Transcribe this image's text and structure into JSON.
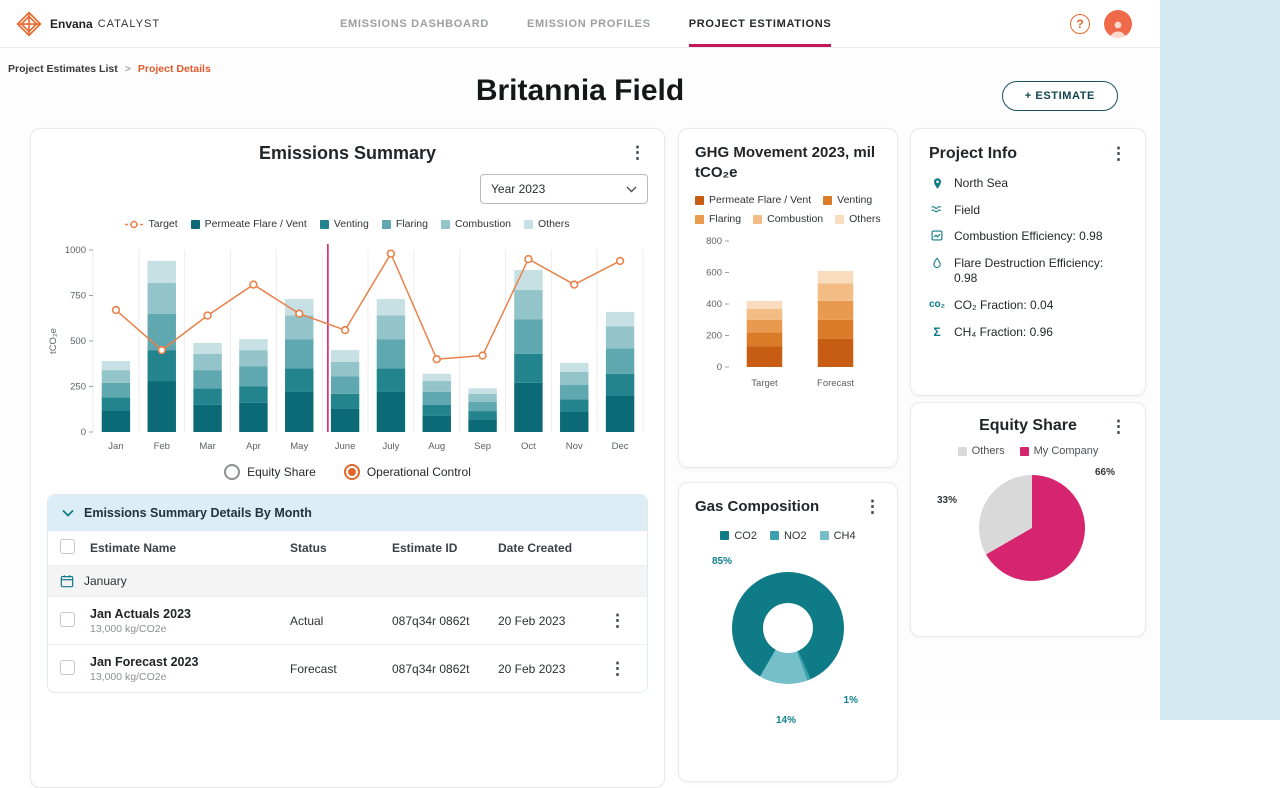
{
  "brand": {
    "name": "Envana",
    "suffix": "CATALYST"
  },
  "nav": {
    "items": [
      {
        "label": "EMISSIONS DASHBOARD",
        "active": false
      },
      {
        "label": "EMISSION PROFILES",
        "active": false
      },
      {
        "label": "PROJECT ESTIMATIONS",
        "active": true
      }
    ]
  },
  "header_icons": {
    "help_label": "?"
  },
  "breadcrumb": {
    "items": [
      "Project Estimates List",
      "Project Details"
    ],
    "separator": ">"
  },
  "page": {
    "title": "Britannia Field",
    "estimate_button_label": "+ ESTIMATE"
  },
  "emissions_summary": {
    "year_filter": "Year 2023",
    "radios": [
      {
        "label": "Equity Share",
        "selected": false
      },
      {
        "label": "Operational Control",
        "selected": true
      }
    ]
  },
  "details_table": {
    "header": "Emissions Summary Details By Month",
    "columns": [
      "Estimate Name",
      "Status",
      "Estimate ID",
      "Date Created"
    ],
    "groups": [
      {
        "label": "January",
        "rows": [
          {
            "name": "Jan Actuals 2023",
            "sub": "13,000 kg/CO2e",
            "status": "Actual",
            "estimate_id": "087q34r 0862t",
            "date": "20 Feb 2023"
          },
          {
            "name": "Jan Forecast 2023",
            "sub": "13,000 kg/CO2e",
            "status": "Forecast",
            "estimate_id": "087q34r 0862t",
            "date": "20 Feb 2023"
          }
        ]
      }
    ]
  },
  "project_info": {
    "title": "Project Info",
    "items": [
      {
        "icon": "location-pin",
        "text": "North Sea"
      },
      {
        "icon": "field",
        "text": "Field"
      },
      {
        "icon": "combustion-efficiency",
        "text": "Combustion Efficiency: 0.98"
      },
      {
        "icon": "flare-destruction",
        "text": "Flare Destruction Efficiency: 0.98"
      },
      {
        "icon": "co2-fraction",
        "text": "CO₂ Fraction: 0.04"
      },
      {
        "icon": "ch4-fraction",
        "text": "CH₄ Fraction: 0.96"
      }
    ]
  },
  "chart_data": [
    {
      "id": "emissions-summary",
      "type": "bar",
      "stacked": true,
      "title": "Emissions Summary",
      "ylabel": "tCO₂e",
      "ylim": [
        0,
        1000
      ],
      "yticks": [
        0,
        250,
        500,
        750,
        1000
      ],
      "grid": true,
      "legend_position": "top",
      "categories": [
        "Jan",
        "Feb",
        "Mar",
        "Apr",
        "May",
        "June",
        "July",
        "Aug",
        "Sep",
        "Oct",
        "Nov",
        "Dec"
      ],
      "series": [
        {
          "name": "Permeate Flare / Vent",
          "color": "#0c6a76",
          "values": [
            120,
            280,
            150,
            160,
            220,
            130,
            220,
            90,
            70,
            270,
            110,
            200
          ]
        },
        {
          "name": "Venting",
          "color": "#23848e",
          "values": [
            70,
            170,
            90,
            90,
            130,
            80,
            130,
            60,
            45,
            160,
            70,
            120
          ]
        },
        {
          "name": "Flaring",
          "color": "#5fa8b0",
          "values": [
            80,
            200,
            100,
            110,
            160,
            95,
            160,
            70,
            50,
            190,
            80,
            140
          ]
        },
        {
          "name": "Combustion",
          "color": "#93c4ca",
          "values": [
            70,
            170,
            90,
            90,
            130,
            80,
            130,
            60,
            45,
            160,
            70,
            120
          ]
        },
        {
          "name": "Others",
          "color": "#c7e0e4",
          "values": [
            50,
            120,
            60,
            60,
            90,
            65,
            90,
            40,
            30,
            110,
            50,
            80
          ]
        }
      ],
      "line_series": {
        "name": "Target",
        "color": "#e8824a",
        "values": [
          670,
          450,
          640,
          810,
          650,
          560,
          980,
          400,
          420,
          950,
          810,
          940
        ]
      },
      "marker_line": {
        "category": "June",
        "color": "#d6246e"
      }
    },
    {
      "id": "ghg-movement",
      "type": "bar",
      "stacked": true,
      "title": "GHG Movement 2023, mil tCO₂e",
      "ylim": [
        0,
        800
      ],
      "yticks": [
        0,
        200,
        400,
        600,
        800
      ],
      "categories": [
        "Target",
        "Forecast"
      ],
      "series": [
        {
          "name": "Permeate Flare / Vent",
          "color": "#c65d12",
          "values": [
            130,
            180
          ]
        },
        {
          "name": "Venting",
          "color": "#d97b27",
          "values": [
            90,
            120
          ]
        },
        {
          "name": "Flaring",
          "color": "#e89a4e",
          "values": [
            80,
            120
          ]
        },
        {
          "name": "Combustion",
          "color": "#f3bc85",
          "values": [
            70,
            110
          ]
        },
        {
          "name": "Others",
          "color": "#f9dcbd",
          "values": [
            50,
            80
          ]
        }
      ]
    },
    {
      "id": "gas-composition",
      "type": "pie",
      "donut": true,
      "title": "Gas Composition",
      "labels": [
        "CO2",
        "NO2",
        "CH4"
      ],
      "values": [
        85,
        1,
        14
      ],
      "value_labels": [
        "85%",
        "1%",
        "14%"
      ],
      "colors": [
        "#0e7b87",
        "#3ba2ad",
        "#76bfc8"
      ],
      "from_deg": 210
    },
    {
      "id": "equity-share",
      "type": "pie",
      "title": "Equity Share",
      "labels": [
        "Others",
        "My Company"
      ],
      "values": [
        33,
        66
      ],
      "value_labels": [
        "33%",
        "66%"
      ],
      "colors": [
        "#d9d9d9",
        "#d6246e"
      ],
      "from_deg": 240
    }
  ]
}
